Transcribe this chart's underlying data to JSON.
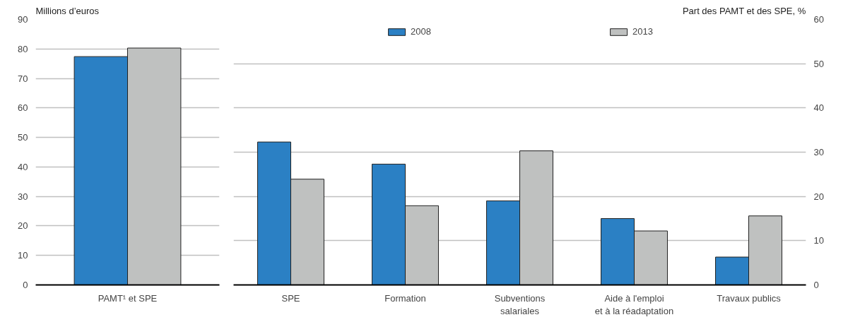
{
  "chart_data": [
    {
      "type": "bar",
      "ylabel": "Millions d’euros",
      "categories": [
        "PAMT¹ et SPE"
      ],
      "series": [
        {
          "color": "#2b80c4",
          "values": [
            77.4
          ]
        },
        {
          "color": "#bfc1c0",
          "values": [
            80.3
          ]
        }
      ],
      "ylim": [
        0,
        90
      ],
      "yticks": [
        0,
        10,
        20,
        30,
        40,
        50,
        60,
        70,
        80,
        90
      ],
      "grid": "y",
      "legend": false
    },
    {
      "type": "bar",
      "y2label": "Part des PAMT et des SPE, %",
      "categories": [
        "SPE",
        "Formation",
        "Subventions\nsalariales",
        "Aide à l'emploi\net à la réadaptation",
        "Travaux publics"
      ],
      "series": [
        {
          "name": "2008",
          "color": "#2b80c4",
          "axis": "y2",
          "values": [
            32.3,
            27.3,
            19.0,
            15.0,
            6.3
          ]
        },
        {
          "name": "2013",
          "color": "#bfc1c0",
          "axis": "y2",
          "values": [
            23.9,
            17.9,
            30.3,
            12.2,
            15.6
          ]
        }
      ],
      "y2lim": [
        0,
        60
      ],
      "y2ticks": [
        0,
        10,
        20,
        30,
        40,
        50,
        60
      ],
      "grid": "y",
      "legend": "top"
    }
  ]
}
